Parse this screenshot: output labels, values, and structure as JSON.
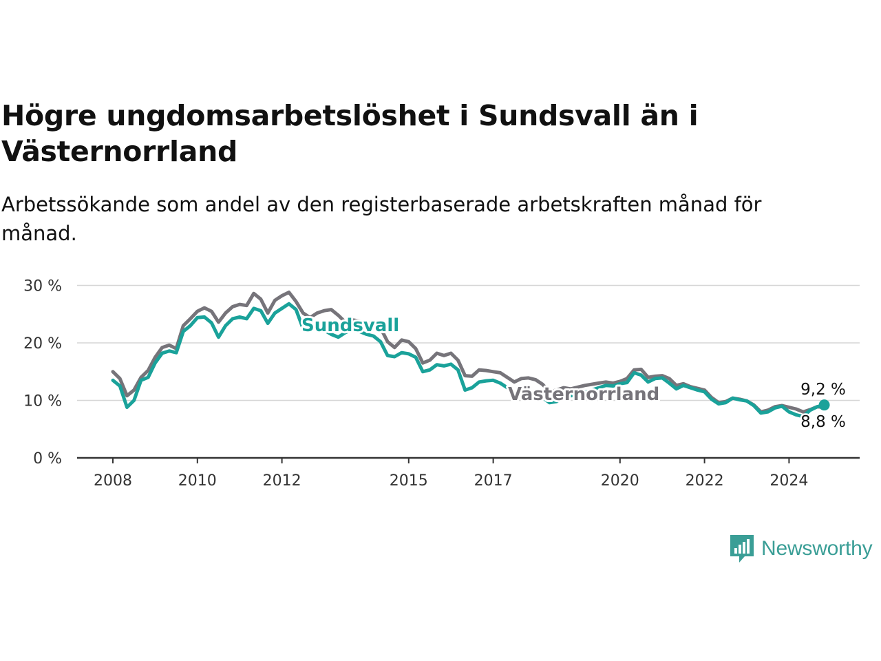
{
  "chart_data": {
    "type": "line",
    "title": "Högre ungdomsarbetslöshet i Sundsvall än i Västernorrland",
    "subtitle": "Arbetssökande som andel av den registerbaserade arbetskraften månad för månad.",
    "xlabel": "",
    "ylabel": "",
    "x_range": [
      "2008-01",
      "2024-12"
    ],
    "ylim": [
      0,
      30
    ],
    "y_ticks": [
      0,
      10,
      20,
      30
    ],
    "y_tick_labels": [
      "0 %",
      "10 %",
      "20 %",
      "30 %"
    ],
    "x_ticks": [
      "2008",
      "2010",
      "2012",
      "2015",
      "2017",
      "2020",
      "2022",
      "2024"
    ],
    "grid": true,
    "legend": "direct-labels",
    "series": [
      {
        "name": "Västernorrland",
        "color": "#76747a",
        "end_label": "8,8 %",
        "points": [
          [
            "2008-01",
            15.0
          ],
          [
            "2008-03",
            13.8
          ],
          [
            "2008-05",
            10.8
          ],
          [
            "2008-07",
            11.8
          ],
          [
            "2008-09",
            14.0
          ],
          [
            "2008-11",
            15.2
          ],
          [
            "2009-01",
            17.5
          ],
          [
            "2009-03",
            19.2
          ],
          [
            "2009-05",
            19.6
          ],
          [
            "2009-07",
            19.0
          ],
          [
            "2009-09",
            23.0
          ],
          [
            "2009-11",
            24.2
          ],
          [
            "2010-01",
            25.5
          ],
          [
            "2010-03",
            26.1
          ],
          [
            "2010-05",
            25.5
          ],
          [
            "2010-07",
            23.6
          ],
          [
            "2010-09",
            25.2
          ],
          [
            "2010-11",
            26.3
          ],
          [
            "2011-01",
            26.7
          ],
          [
            "2011-03",
            26.5
          ],
          [
            "2011-05",
            28.6
          ],
          [
            "2011-07",
            27.6
          ],
          [
            "2011-09",
            25.2
          ],
          [
            "2011-11",
            27.4
          ],
          [
            "2012-01",
            28.2
          ],
          [
            "2012-03",
            28.8
          ],
          [
            "2012-05",
            27.2
          ],
          [
            "2012-07",
            25.2
          ],
          [
            "2012-09",
            24.4
          ],
          [
            "2012-11",
            25.2
          ],
          [
            "2013-01",
            25.6
          ],
          [
            "2013-03",
            25.8
          ],
          [
            "2013-05",
            24.8
          ],
          [
            "2013-07",
            23.6
          ],
          [
            "2013-09",
            24.0
          ],
          [
            "2013-11",
            23.8
          ],
          [
            "2014-01",
            23.2
          ],
          [
            "2014-03",
            23.6
          ],
          [
            "2014-05",
            22.6
          ],
          [
            "2014-07",
            20.2
          ],
          [
            "2014-09",
            19.2
          ],
          [
            "2014-11",
            20.5
          ],
          [
            "2015-01",
            20.2
          ],
          [
            "2015-03",
            19.0
          ],
          [
            "2015-05",
            16.5
          ],
          [
            "2015-07",
            17.0
          ],
          [
            "2015-09",
            18.2
          ],
          [
            "2015-11",
            17.8
          ],
          [
            "2016-01",
            18.2
          ],
          [
            "2016-03",
            17.0
          ],
          [
            "2016-05",
            14.3
          ],
          [
            "2016-07",
            14.2
          ],
          [
            "2016-09",
            15.3
          ],
          [
            "2016-11",
            15.2
          ],
          [
            "2017-01",
            15.0
          ],
          [
            "2017-03",
            14.8
          ],
          [
            "2017-05",
            14.0
          ],
          [
            "2017-07",
            13.2
          ],
          [
            "2017-09",
            13.8
          ],
          [
            "2017-11",
            13.9
          ],
          [
            "2018-01",
            13.6
          ],
          [
            "2018-03",
            12.8
          ],
          [
            "2018-05",
            11.5
          ],
          [
            "2018-07",
            11.8
          ],
          [
            "2018-09",
            12.2
          ],
          [
            "2018-11",
            12.0
          ],
          [
            "2019-01",
            12.3
          ],
          [
            "2019-03",
            12.6
          ],
          [
            "2019-05",
            12.8
          ],
          [
            "2019-07",
            13.0
          ],
          [
            "2019-09",
            13.2
          ],
          [
            "2019-11",
            13.0
          ],
          [
            "2020-01",
            13.3
          ],
          [
            "2020-03",
            13.8
          ],
          [
            "2020-05",
            15.3
          ],
          [
            "2020-07",
            15.4
          ],
          [
            "2020-09",
            14.0
          ],
          [
            "2020-11",
            14.2
          ],
          [
            "2021-01",
            14.3
          ],
          [
            "2021-03",
            13.8
          ],
          [
            "2021-05",
            12.6
          ],
          [
            "2021-07",
            12.9
          ],
          [
            "2021-09",
            12.4
          ],
          [
            "2021-11",
            12.1
          ],
          [
            "2022-01",
            11.8
          ],
          [
            "2022-03",
            10.5
          ],
          [
            "2022-05",
            9.6
          ],
          [
            "2022-07",
            9.8
          ],
          [
            "2022-09",
            10.4
          ],
          [
            "2022-11",
            10.2
          ],
          [
            "2023-01",
            9.9
          ],
          [
            "2023-03",
            9.2
          ],
          [
            "2023-05",
            8.0
          ],
          [
            "2023-07",
            8.3
          ],
          [
            "2023-09",
            8.9
          ],
          [
            "2023-11",
            9.1
          ],
          [
            "2024-01",
            8.8
          ],
          [
            "2024-03",
            8.5
          ],
          [
            "2024-05",
            8.0
          ],
          [
            "2024-07",
            8.4
          ],
          [
            "2024-09",
            8.9
          ],
          [
            "2024-11",
            8.8
          ]
        ]
      },
      {
        "name": "Sundsvall",
        "color": "#1aa29a",
        "end_label": "9,2 %",
        "points": [
          [
            "2008-01",
            13.5
          ],
          [
            "2008-03",
            12.5
          ],
          [
            "2008-05",
            8.8
          ],
          [
            "2008-07",
            10.0
          ],
          [
            "2008-09",
            13.5
          ],
          [
            "2008-11",
            14.0
          ],
          [
            "2009-01",
            16.5
          ],
          [
            "2009-03",
            18.2
          ],
          [
            "2009-05",
            18.6
          ],
          [
            "2009-07",
            18.3
          ],
          [
            "2009-09",
            22.0
          ],
          [
            "2009-11",
            23.0
          ],
          [
            "2010-01",
            24.4
          ],
          [
            "2010-03",
            24.5
          ],
          [
            "2010-05",
            23.5
          ],
          [
            "2010-07",
            21.0
          ],
          [
            "2010-09",
            23.0
          ],
          [
            "2010-11",
            24.2
          ],
          [
            "2011-01",
            24.5
          ],
          [
            "2011-03",
            24.2
          ],
          [
            "2011-05",
            26.0
          ],
          [
            "2011-07",
            25.6
          ],
          [
            "2011-09",
            23.4
          ],
          [
            "2011-11",
            25.2
          ],
          [
            "2012-01",
            26.0
          ],
          [
            "2012-03",
            26.8
          ],
          [
            "2012-05",
            25.8
          ],
          [
            "2012-07",
            22.5
          ],
          [
            "2012-09",
            22.4
          ],
          [
            "2012-11",
            22.8
          ],
          [
            "2013-01",
            22.2
          ],
          [
            "2013-03",
            21.5
          ],
          [
            "2013-05",
            21.0
          ],
          [
            "2013-07",
            21.8
          ],
          [
            "2013-09",
            22.3
          ],
          [
            "2013-11",
            22.0
          ],
          [
            "2014-01",
            21.5
          ],
          [
            "2014-03",
            21.2
          ],
          [
            "2014-05",
            20.2
          ],
          [
            "2014-07",
            17.8
          ],
          [
            "2014-09",
            17.6
          ],
          [
            "2014-11",
            18.3
          ],
          [
            "2015-01",
            18.1
          ],
          [
            "2015-03",
            17.5
          ],
          [
            "2015-05",
            15.0
          ],
          [
            "2015-07",
            15.3
          ],
          [
            "2015-09",
            16.2
          ],
          [
            "2015-11",
            16.0
          ],
          [
            "2016-01",
            16.3
          ],
          [
            "2016-03",
            15.3
          ],
          [
            "2016-05",
            11.8
          ],
          [
            "2016-07",
            12.2
          ],
          [
            "2016-09",
            13.2
          ],
          [
            "2016-11",
            13.4
          ],
          [
            "2017-01",
            13.5
          ],
          [
            "2017-03",
            13.0
          ],
          [
            "2017-05",
            12.2
          ],
          [
            "2017-07",
            11.2
          ],
          [
            "2017-09",
            11.8
          ],
          [
            "2017-11",
            11.6
          ],
          [
            "2018-01",
            11.0
          ],
          [
            "2018-03",
            10.5
          ],
          [
            "2018-05",
            9.6
          ],
          [
            "2018-07",
            9.8
          ],
          [
            "2018-09",
            10.6
          ],
          [
            "2018-11",
            10.8
          ],
          [
            "2019-01",
            11.0
          ],
          [
            "2019-03",
            11.4
          ],
          [
            "2019-05",
            11.8
          ],
          [
            "2019-07",
            12.2
          ],
          [
            "2019-09",
            12.6
          ],
          [
            "2019-11",
            12.5
          ],
          [
            "2020-01",
            12.9
          ],
          [
            "2020-03",
            13.1
          ],
          [
            "2020-05",
            14.8
          ],
          [
            "2020-07",
            14.4
          ],
          [
            "2020-09",
            13.2
          ],
          [
            "2020-11",
            13.8
          ],
          [
            "2021-01",
            13.9
          ],
          [
            "2021-03",
            13.0
          ],
          [
            "2021-05",
            12.0
          ],
          [
            "2021-07",
            12.6
          ],
          [
            "2021-09",
            12.2
          ],
          [
            "2021-11",
            11.8
          ],
          [
            "2022-01",
            11.5
          ],
          [
            "2022-03",
            10.2
          ],
          [
            "2022-05",
            9.4
          ],
          [
            "2022-07",
            9.6
          ],
          [
            "2022-09",
            10.4
          ],
          [
            "2022-11",
            10.1
          ],
          [
            "2023-01",
            9.9
          ],
          [
            "2023-03",
            9.1
          ],
          [
            "2023-05",
            7.8
          ],
          [
            "2023-07",
            8.0
          ],
          [
            "2023-09",
            8.7
          ],
          [
            "2023-11",
            9.0
          ],
          [
            "2024-01",
            8.0
          ],
          [
            "2024-03",
            7.5
          ],
          [
            "2024-05",
            7.2
          ],
          [
            "2024-07",
            8.3
          ],
          [
            "2024-09",
            8.9
          ],
          [
            "2024-11",
            9.2
          ]
        ]
      }
    ]
  },
  "brand": {
    "name": "Newsworthy"
  }
}
